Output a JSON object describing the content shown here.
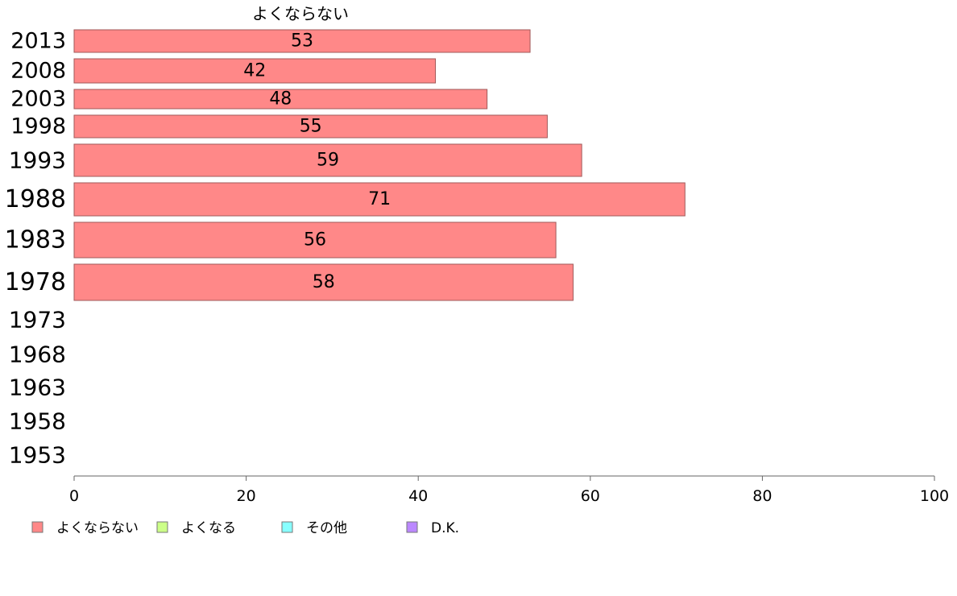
{
  "chart_data": {
    "type": "bar",
    "orientation": "horizontal",
    "title": "よくならない",
    "xlabel": "",
    "ylabel": "",
    "xlim": [
      0,
      100
    ],
    "x_ticks": [
      0,
      20,
      40,
      60,
      80,
      100
    ],
    "categories": [
      "2013",
      "2008",
      "2003",
      "1998",
      "1993",
      "1988",
      "1983",
      "1978",
      "1973",
      "1968",
      "1963",
      "1958",
      "1953"
    ],
    "series": [
      {
        "name": "よくならない",
        "color": "#ff8888",
        "values": [
          53,
          42,
          48,
          55,
          59,
          71,
          56,
          58,
          null,
          null,
          null,
          null,
          null
        ],
        "data_labels": [
          "53",
          "42",
          "48",
          "55",
          "59",
          "71",
          "56",
          "58"
        ]
      }
    ],
    "grid": false,
    "legend": {
      "placement": "bottom-left",
      "entries": [
        {
          "label": "よくならない",
          "color": "#ff8888"
        },
        {
          "label": "よくなる",
          "color": "#ccff88"
        },
        {
          "label": "その他",
          "color": "#88ffff"
        },
        {
          "label": "D.K.",
          "color": "#bb88ff"
        }
      ]
    }
  }
}
